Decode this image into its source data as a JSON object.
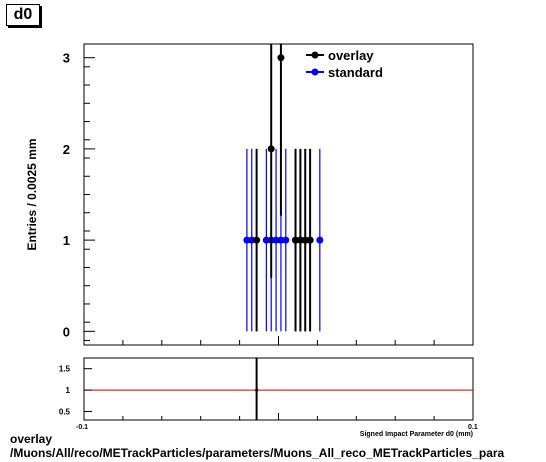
{
  "histogram_label": "d0",
  "footer": {
    "line1": "overlay",
    "line2": "/Muons/All/reco/METrackParticles/parameters/Muons_All_reco_METrackParticles_para"
  },
  "colors": {
    "overlay": "#000000",
    "standard": "#0000ff",
    "ratio_line": "#cc0000"
  },
  "chart_data": [
    {
      "type": "scatter",
      "ylabel": "Entries / 0.0025 mm",
      "xlim": [
        -0.1,
        0.1
      ],
      "ylim": [
        -0.15,
        3.15
      ],
      "yticks": [
        0,
        1,
        2,
        3
      ],
      "legend_position": "top-right",
      "series": [
        {
          "name": "overlay",
          "points": [
            {
              "x": -0.01125,
              "y": 1
            },
            {
              "x": -0.00375,
              "y": 2
            },
            {
              "x": 0.00125,
              "y": 3
            },
            {
              "x": 0.00875,
              "y": 1
            },
            {
              "x": 0.01125,
              "y": 1
            },
            {
              "x": 0.01375,
              "y": 1
            },
            {
              "x": 0.01625,
              "y": 1
            }
          ]
        },
        {
          "name": "standard",
          "points": [
            {
              "x": -0.01625,
              "y": 1
            },
            {
              "x": -0.01375,
              "y": 1
            },
            {
              "x": -0.00625,
              "y": 1
            },
            {
              "x": -0.00375,
              "y": 1
            },
            {
              "x": -0.00125,
              "y": 1
            },
            {
              "x": 0.00125,
              "y": 1
            },
            {
              "x": 0.00375,
              "y": 1
            },
            {
              "x": 0.00875,
              "y": 1
            },
            {
              "x": 0.01125,
              "y": 1
            },
            {
              "x": 0.01375,
              "y": 1
            },
            {
              "x": 0.01625,
              "y": 1
            },
            {
              "x": 0.02125,
              "y": 1
            }
          ]
        }
      ]
    },
    {
      "type": "line",
      "xlabel": "Signed Impact Parameter d0 (mm)",
      "xlim": [
        -0.1,
        0.1
      ],
      "ylim": [
        0.3,
        1.75
      ],
      "yticks": [
        "0.5",
        "1",
        "1.5"
      ],
      "xticks": [
        "-0.1",
        "0.1"
      ],
      "reference_line": 1,
      "points": [
        {
          "x": -0.01125,
          "y": 1
        }
      ]
    }
  ]
}
